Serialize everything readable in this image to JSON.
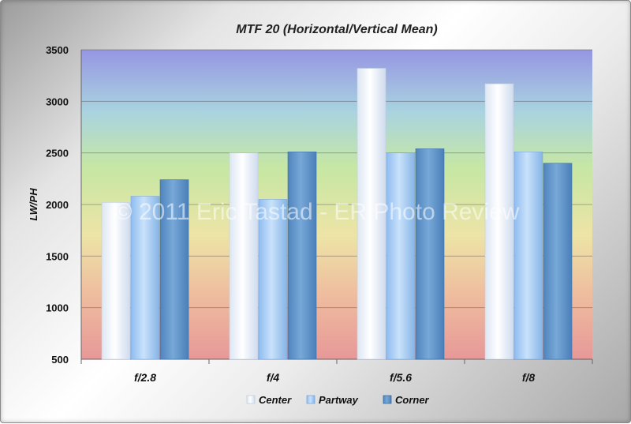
{
  "chart_data": {
    "type": "bar",
    "title": "MTF 20 (Horizontal/Vertical Mean)",
    "ylabel": "LW/PH",
    "xlabel": "",
    "categories": [
      "f/2.8",
      "f/4",
      "f/5.6",
      "f/8"
    ],
    "series": [
      {
        "name": "Center",
        "values": [
          2020,
          2500,
          3320,
          3170
        ]
      },
      {
        "name": "Partway",
        "values": [
          2080,
          2050,
          2500,
          2510
        ]
      },
      {
        "name": "Corner",
        "values": [
          2240,
          2510,
          2540,
          2400
        ]
      }
    ],
    "ylim": [
      500,
      3500
    ],
    "yticks": [
      500,
      1000,
      1500,
      2000,
      2500,
      3000,
      3500
    ],
    "grid": true,
    "legend_position": "bottom",
    "colors": {
      "Center": "#eef3fb",
      "Partway": "#a9cef5",
      "Corner": "#5f94c8",
      "gridline": "#555555",
      "plot_top": "#9a9ae0",
      "plot_mid": "#c9e6a2",
      "plot_bottom": "#e59a9a"
    },
    "watermark": "© 2011 Eric Tastad - ER Photo Review"
  }
}
